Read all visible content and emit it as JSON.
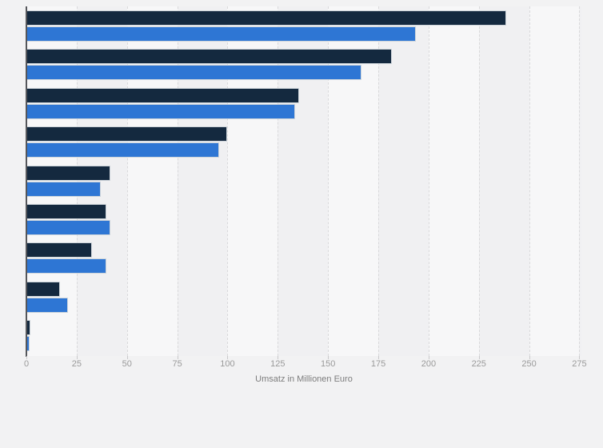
{
  "chart_data": {
    "type": "bar",
    "orientation": "horizontal",
    "title": "",
    "xlabel": "Umsatz in Millionen Euro",
    "ylabel": "",
    "categories": [
      "",
      "",
      "",
      "",
      "",
      "",
      "",
      "",
      ""
    ],
    "series": [
      {
        "name": "dark-navy",
        "color": "#14293f",
        "values": [
          238,
          181,
          135,
          99,
          41,
          39,
          32,
          16,
          1.2
        ]
      },
      {
        "name": "blue",
        "color": "#2e76d4",
        "values": [
          193,
          166,
          133,
          95,
          36,
          41,
          39,
          20,
          0.8
        ]
      }
    ],
    "x_ticks": [
      0,
      25,
      50,
      75,
      100,
      125,
      150,
      175,
      200,
      225,
      250,
      275
    ],
    "xlim": [
      0,
      276
    ],
    "grid": "vertical-dashed",
    "legend": "none",
    "colors": {
      "page_background": "#f2f2f3",
      "band_light": "#f7f7f8",
      "band_dark": "#f0f0f2",
      "gridline": "#d9d9db",
      "axis_line": "#55565a",
      "tick_text": "#9a9a9a",
      "axis_title_text": "#7d7d7d"
    }
  }
}
